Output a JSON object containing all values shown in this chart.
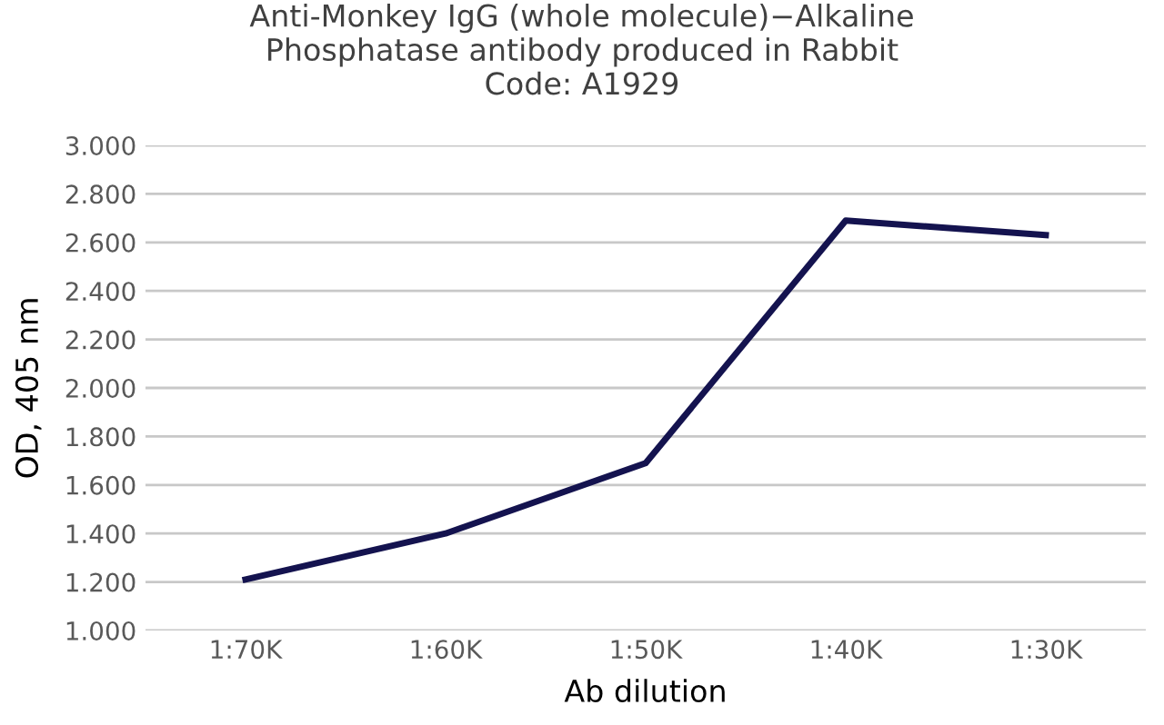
{
  "chart_data": {
    "type": "line",
    "title": "Anti-Monkey IgG (whole molecule)−Alkaline\nPhosphatase antibody produced in Rabbit\nCode: A1929",
    "xlabel": "Ab dilution",
    "ylabel": "OD, 405 nm",
    "categories": [
      "1:70K",
      "1:60K",
      "1:50K",
      "1:40K",
      "1:30K"
    ],
    "series": [
      {
        "color": "#14134f",
        "values": [
          1.21,
          1.4,
          1.69,
          2.69,
          2.63
        ]
      }
    ],
    "ylim": [
      1.0,
      3.0
    ],
    "yticks": [
      {
        "value": 1.0,
        "label": "1.000"
      },
      {
        "value": 1.2,
        "label": "1.200"
      },
      {
        "value": 1.4,
        "label": "1.400"
      },
      {
        "value": 1.6,
        "label": "1.600"
      },
      {
        "value": 1.8,
        "label": "1.800"
      },
      {
        "value": 2.0,
        "label": "2.000"
      },
      {
        "value": 2.2,
        "label": "2.200"
      },
      {
        "value": 2.4,
        "label": "2.400"
      },
      {
        "value": 2.6,
        "label": "2.600"
      },
      {
        "value": 2.8,
        "label": "2.800"
      },
      {
        "value": 3.0,
        "label": "3.000"
      }
    ],
    "grid": "y",
    "marker": "none",
    "line_style": "solid"
  }
}
